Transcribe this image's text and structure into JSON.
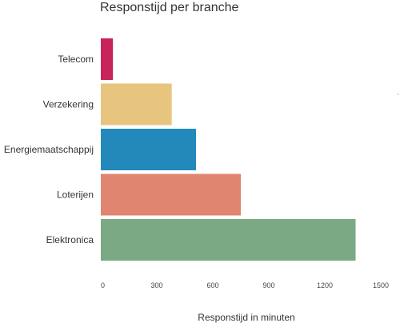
{
  "chart_data": {
    "type": "bar",
    "orientation": "horizontal",
    "title": "Responstijd per branche",
    "xlabel": "Responstijd in minuten",
    "ylabel": "",
    "categories": [
      "Telecom",
      "Verzekering",
      "Energiemaatschappij",
      "Loterijen",
      "Elektronica"
    ],
    "values": [
      65,
      380,
      510,
      750,
      1365
    ],
    "colors": [
      "#c7245b",
      "#e8c57e",
      "#2389bb",
      "#e0856f",
      "#7ba984"
    ],
    "xlim": [
      0,
      1500
    ],
    "xticks": [
      0,
      300,
      600,
      900,
      1200,
      1500
    ],
    "xtick_labels": [
      "0",
      "300",
      "600",
      "900",
      "1200",
      "1500"
    ],
    "grid": false,
    "legend": "none"
  }
}
